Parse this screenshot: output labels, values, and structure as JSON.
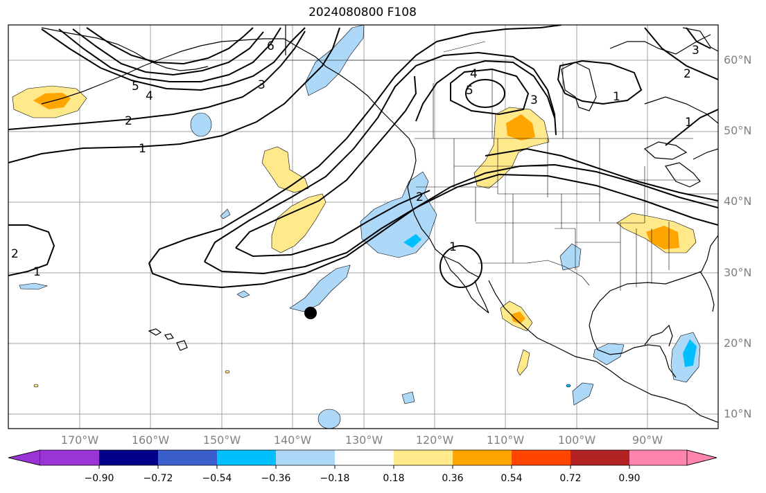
{
  "title": "2024080800 F108",
  "lat_labels": [
    "60°N",
    "50°N",
    "40°N",
    "30°N",
    "20°N",
    "10°N"
  ],
  "lon_labels": [
    "170°W",
    "160°W",
    "150°W",
    "140°W",
    "130°W",
    "120°W",
    "110°W",
    "100°W",
    "90°W"
  ],
  "colorbar": {
    "colors": [
      "#9a34d4",
      "#00008b",
      "#3a5fcd",
      "#00bfff",
      "#add8f8",
      "#ffffff",
      "#ffe98a",
      "#ffa500",
      "#ff4500",
      "#b22222",
      "#ff85b0"
    ],
    "tick_labels": [
      "−0.90",
      "−0.72",
      "−0.54",
      "−0.36",
      "−0.18",
      "0.18",
      "0.36",
      "0.54",
      "0.72",
      "0.90"
    ]
  },
  "contour_labels": [
    "1",
    "2",
    "3",
    "4",
    "5",
    "6",
    "1",
    "2",
    "3",
    "4",
    "5",
    "1",
    "2",
    "3",
    "1",
    "2",
    "1"
  ],
  "marker": "black-dot"
}
